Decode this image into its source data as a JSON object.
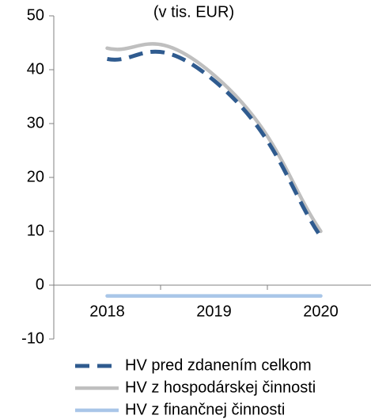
{
  "chart_data": {
    "type": "line",
    "title": "(v tis. EUR)",
    "categories": [
      "2018",
      "2019",
      "2020"
    ],
    "series": [
      {
        "name": "HV pred zdanením celkom",
        "color": "#2f5b8f",
        "dashed": true,
        "values": [
          42,
          38,
          9
        ]
      },
      {
        "name": "HV z hospodárskej činnosti",
        "color": "#bfbfbf",
        "dashed": false,
        "values": [
          44,
          39,
          10
        ]
      },
      {
        "name": "HV z finančnej činnosti",
        "color": "#a9c6e8",
        "dashed": false,
        "values": [
          -2,
          -2,
          -2
        ]
      }
    ],
    "ylim": [
      -10,
      50
    ],
    "yticks": [
      -10,
      0,
      10,
      20,
      30,
      40,
      50
    ],
    "smooth": true,
    "grid": false,
    "legend": "bottom"
  }
}
